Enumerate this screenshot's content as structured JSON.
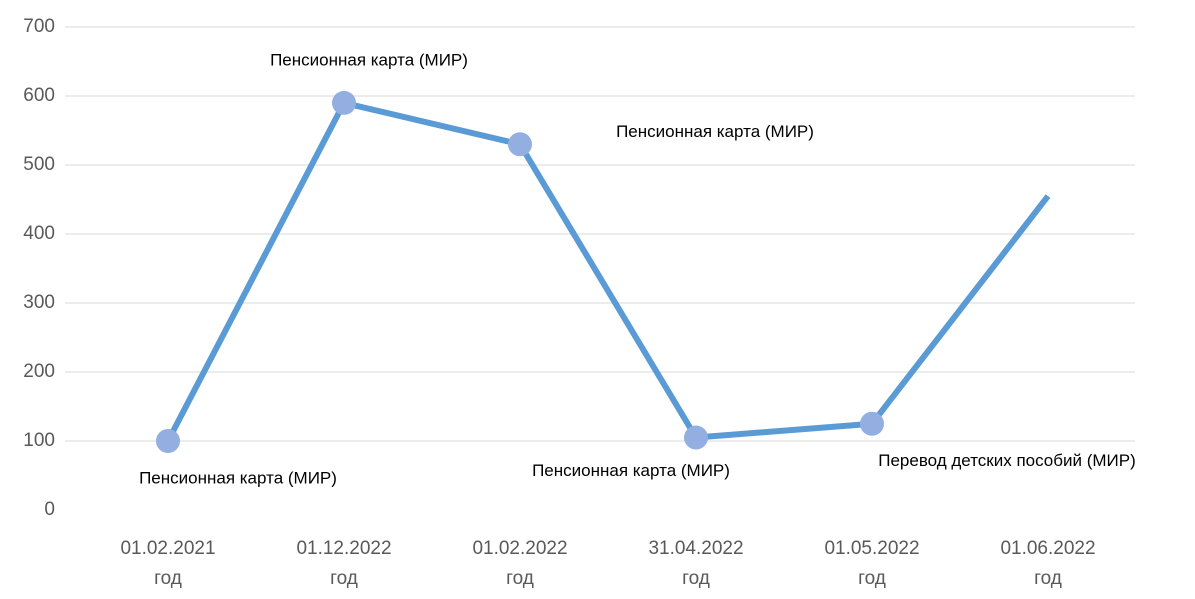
{
  "chart_data": {
    "type": "line",
    "categories": [
      "01.02.2021\nгод",
      "01.12.2022\nгод",
      "01.02.2022\nгод",
      "31.04.2022\nгод",
      "01.05.2022\nгод",
      "01.06.2022\nгод"
    ],
    "values": [
      100,
      590,
      530,
      105,
      125,
      455
    ],
    "point_labels": [
      "Пенсионная карта (МИР)",
      "Пенсионная карта (МИР)",
      "Пенсионная карта (МИР)",
      "Пенсионная карта (МИР)",
      "Перевод детских пособий (МИР)",
      null
    ],
    "color": "#5b9bd5",
    "marker_color": "#93aee0",
    "ylim": [
      0,
      700
    ],
    "yticks": [
      0,
      100,
      200,
      300,
      400,
      500,
      600,
      700
    ],
    "grid": true
  }
}
